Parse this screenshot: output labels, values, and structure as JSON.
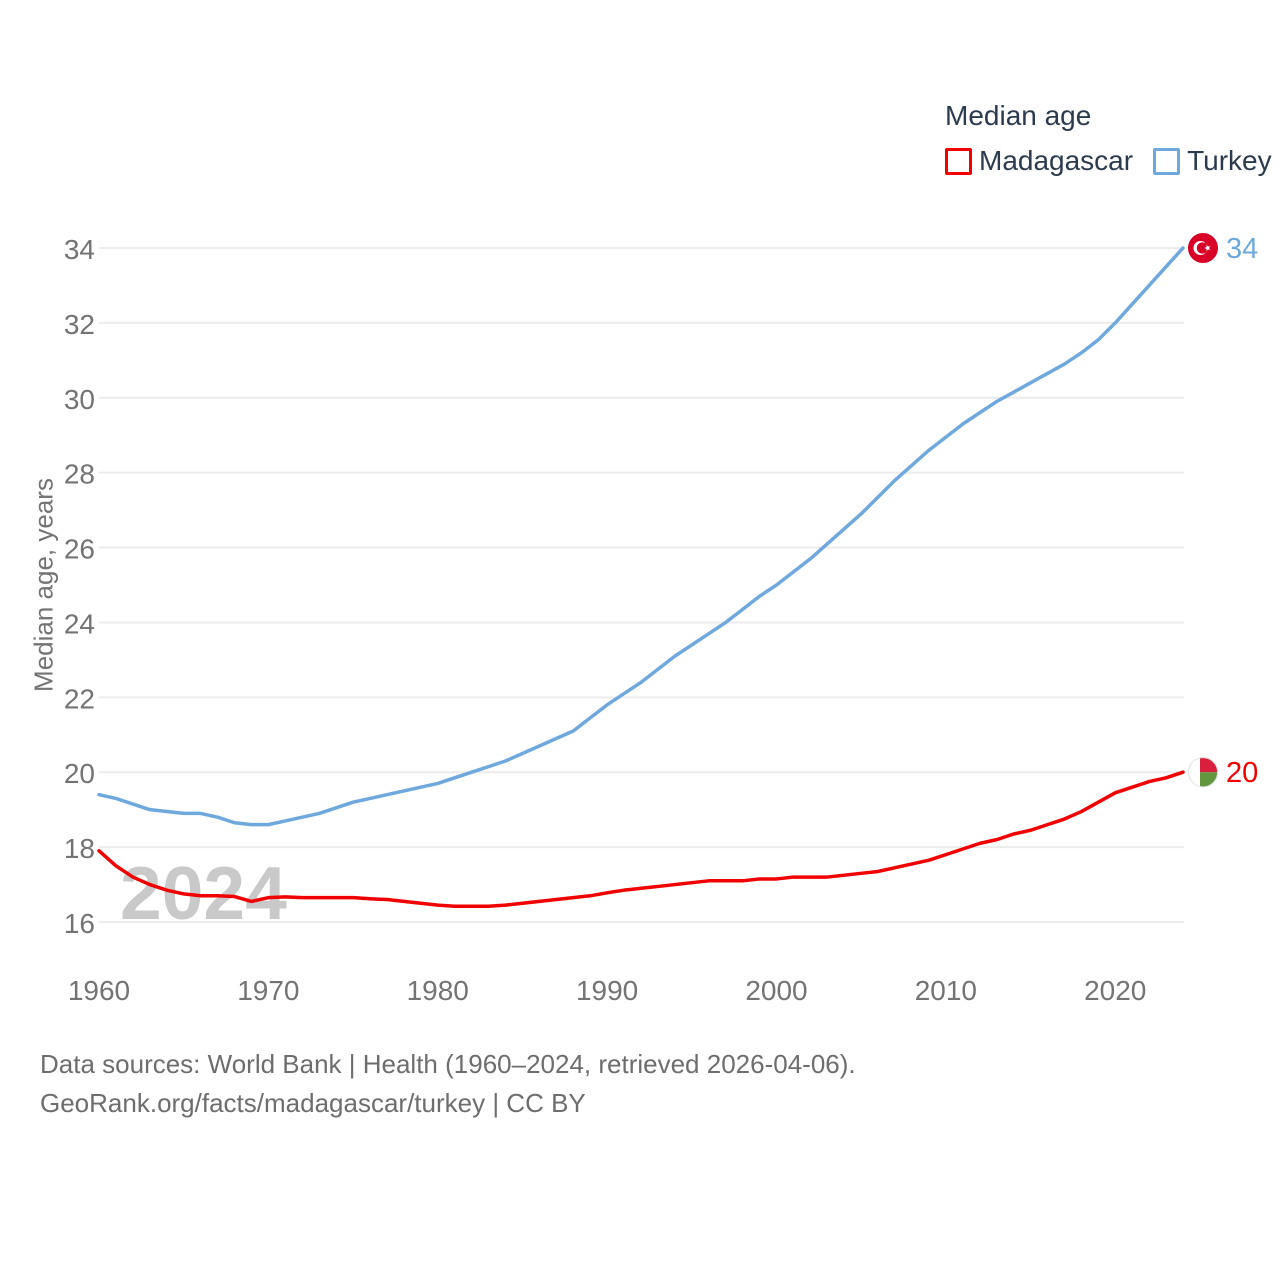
{
  "legend": {
    "title": "Median age",
    "items": [
      {
        "label": "Madagascar",
        "color": "#f10000"
      },
      {
        "label": "Turkey",
        "color": "#6fa8dc"
      }
    ]
  },
  "y_axis_title": "Median age, years",
  "footer": {
    "line1": "Data sources: World Bank | Health (1960–2024, retrieved 2026-04-06).",
    "line2": "GeoRank.org/facts/madagascar/turkey | CC BY"
  },
  "chart_data": {
    "type": "line",
    "title": "Median age",
    "ylabel": "Median age, years",
    "xlabel": "",
    "x_start": 1960,
    "x_end": 2024,
    "x_step": 1,
    "x_ticks": [
      1960,
      1970,
      1980,
      1990,
      2000,
      2010,
      2020
    ],
    "y_ticks": [
      16,
      18,
      20,
      22,
      24,
      26,
      28,
      30,
      32,
      34
    ],
    "ylim": [
      16,
      34
    ],
    "grid": "horizontal",
    "legend_position": "top-right",
    "watermark": "2024",
    "series": [
      {
        "name": "Madagascar",
        "color": "#f10000",
        "end_label": "20",
        "flag": "madagascar",
        "values": [
          17.9,
          17.5,
          17.2,
          17.0,
          16.85,
          16.75,
          16.7,
          16.7,
          16.68,
          16.55,
          16.65,
          16.67,
          16.65,
          16.65,
          16.65,
          16.65,
          16.62,
          16.6,
          16.55,
          16.5,
          16.45,
          16.42,
          16.42,
          16.42,
          16.45,
          16.5,
          16.55,
          16.6,
          16.65,
          16.7,
          16.78,
          16.85,
          16.9,
          16.95,
          17.0,
          17.05,
          17.1,
          17.1,
          17.1,
          17.15,
          17.15,
          17.2,
          17.2,
          17.2,
          17.25,
          17.3,
          17.35,
          17.45,
          17.55,
          17.65,
          17.8,
          17.95,
          18.1,
          18.2,
          18.35,
          18.45,
          18.6,
          18.75,
          18.95,
          19.2,
          19.45,
          19.6,
          19.75,
          19.85,
          20.0
        ]
      },
      {
        "name": "Turkey",
        "color": "#6fa8dc",
        "end_label": "34",
        "flag": "turkey",
        "values": [
          19.4,
          19.3,
          19.15,
          19.0,
          18.95,
          18.9,
          18.9,
          18.8,
          18.65,
          18.6,
          18.6,
          18.7,
          18.8,
          18.9,
          19.05,
          19.2,
          19.3,
          19.4,
          19.5,
          19.6,
          19.7,
          19.85,
          20.0,
          20.15,
          20.3,
          20.5,
          20.7,
          20.9,
          21.1,
          21.45,
          21.8,
          22.1,
          22.4,
          22.75,
          23.1,
          23.4,
          23.7,
          24.0,
          24.35,
          24.7,
          25.0,
          25.35,
          25.7,
          26.1,
          26.5,
          26.9,
          27.35,
          27.8,
          28.2,
          28.6,
          28.95,
          29.3,
          29.6,
          29.9,
          30.15,
          30.4,
          30.65,
          30.9,
          31.2,
          31.55,
          32.0,
          32.5,
          33.0,
          33.5,
          34.0
        ]
      }
    ]
  }
}
